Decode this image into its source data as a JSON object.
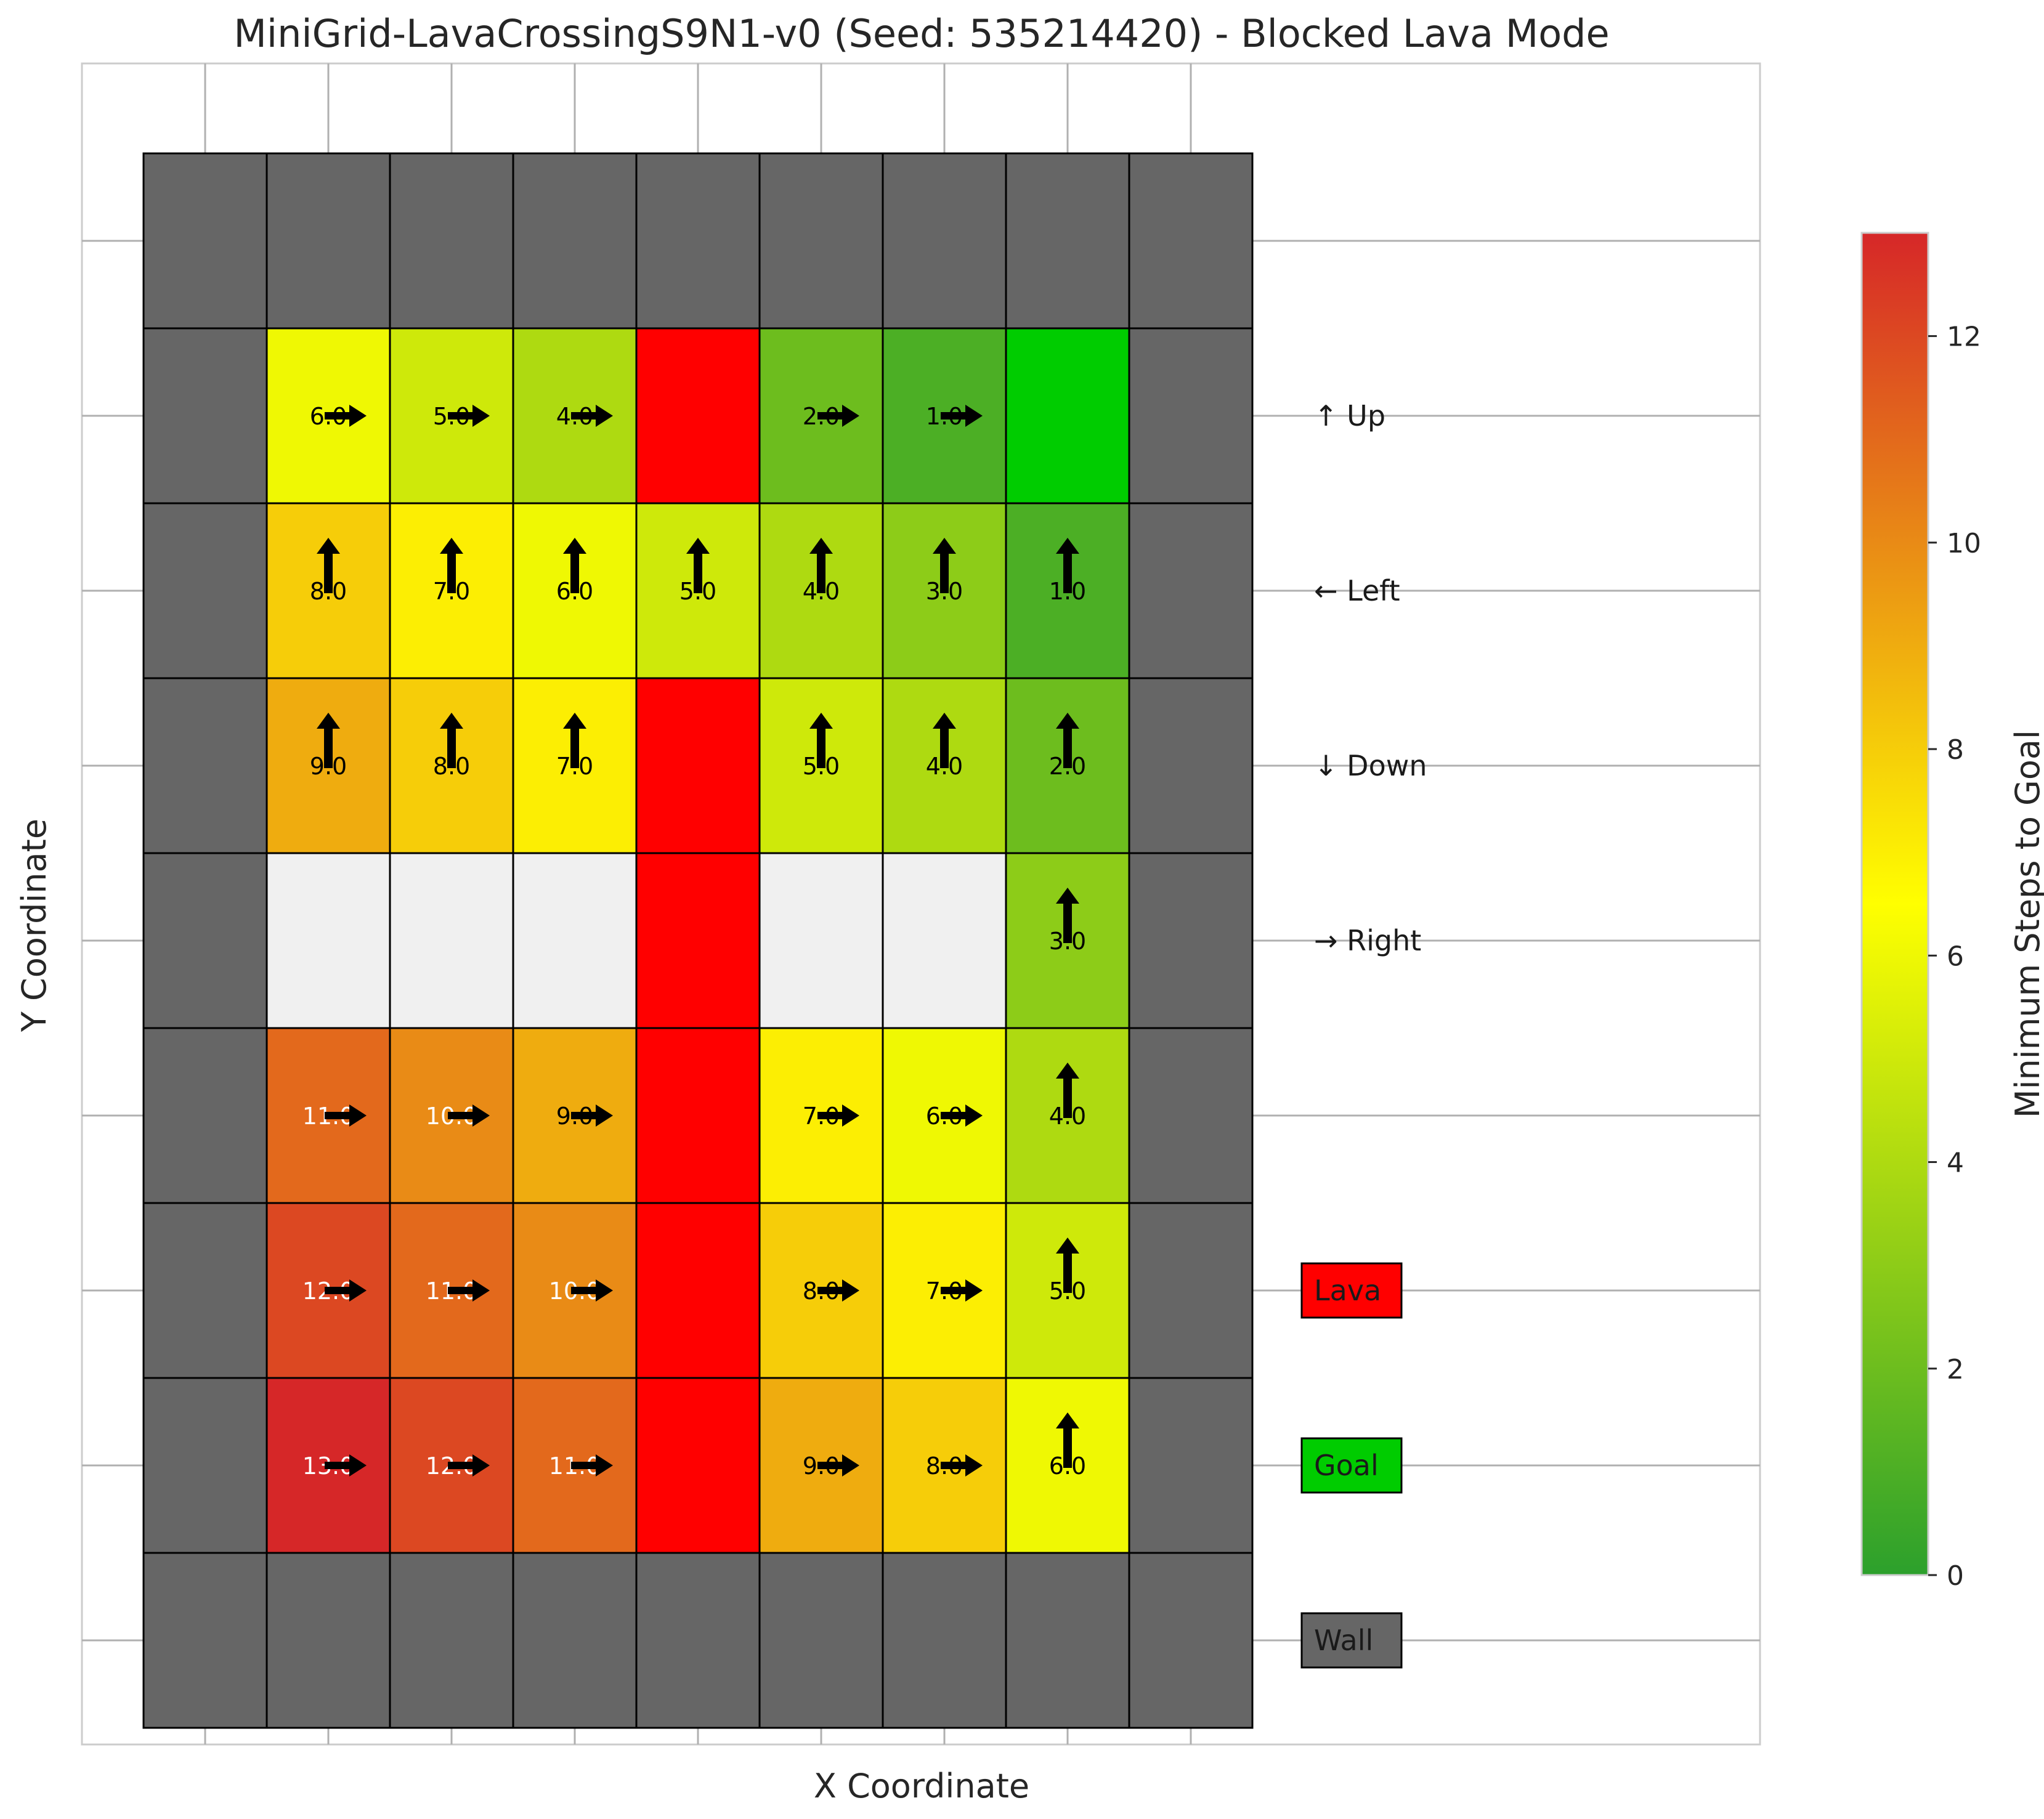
{
  "chart_data": {
    "type": "heatmap",
    "title": "MiniGrid-LavaCrossingS9N1-v0 (Seed: 535214420) - Blocked Lava Mode",
    "xlabel": "X Coordinate",
    "ylabel": "Y Coordinate",
    "grid": true,
    "grid_size": [
      9,
      9
    ],
    "rows": [
      [
        "wall",
        "wall",
        "wall",
        "wall",
        "wall",
        "wall",
        "wall",
        "wall",
        "wall"
      ],
      [
        "wall",
        {
          "v": 6,
          "d": "right"
        },
        {
          "v": 5,
          "d": "right"
        },
        {
          "v": 4,
          "d": "right"
        },
        "lava",
        {
          "v": 2,
          "d": "right"
        },
        {
          "v": 1,
          "d": "right"
        },
        "goal",
        "wall"
      ],
      [
        "wall",
        {
          "v": 8,
          "d": "up"
        },
        {
          "v": 7,
          "d": "up"
        },
        {
          "v": 6,
          "d": "up"
        },
        {
          "v": 5,
          "d": "up"
        },
        {
          "v": 4,
          "d": "up"
        },
        {
          "v": 3,
          "d": "up"
        },
        {
          "v": 1,
          "d": "up"
        },
        "wall"
      ],
      [
        "wall",
        {
          "v": 9,
          "d": "up"
        },
        {
          "v": 8,
          "d": "up"
        },
        {
          "v": 7,
          "d": "up"
        },
        "lava",
        {
          "v": 5,
          "d": "up"
        },
        {
          "v": 4,
          "d": "up"
        },
        {
          "v": 2,
          "d": "up"
        },
        "wall"
      ],
      [
        "wall",
        "empty",
        "empty",
        "empty",
        "lava",
        "empty",
        "empty",
        {
          "v": 3,
          "d": "up"
        },
        "wall"
      ],
      [
        "wall",
        {
          "v": 11,
          "d": "right"
        },
        {
          "v": 10,
          "d": "right"
        },
        {
          "v": 9,
          "d": "right"
        },
        "lava",
        {
          "v": 7,
          "d": "right"
        },
        {
          "v": 6,
          "d": "right"
        },
        {
          "v": 4,
          "d": "up"
        },
        "wall"
      ],
      [
        "wall",
        {
          "v": 12,
          "d": "right"
        },
        {
          "v": 11,
          "d": "right"
        },
        {
          "v": 10,
          "d": "right"
        },
        "lava",
        {
          "v": 8,
          "d": "right"
        },
        {
          "v": 7,
          "d": "right"
        },
        {
          "v": 5,
          "d": "up"
        },
        "wall"
      ],
      [
        "wall",
        {
          "v": 13,
          "d": "right"
        },
        {
          "v": 12,
          "d": "right"
        },
        {
          "v": 11,
          "d": "right"
        },
        "lava",
        {
          "v": 9,
          "d": "right"
        },
        {
          "v": 8,
          "d": "right"
        },
        {
          "v": 6,
          "d": "up"
        },
        "wall"
      ],
      [
        "wall",
        "wall",
        "wall",
        "wall",
        "wall",
        "wall",
        "wall",
        "wall",
        "wall"
      ]
    ],
    "colorbar": {
      "label": "Minimum Steps to Goal",
      "min": 0,
      "max": 13,
      "ticks": [
        0,
        2,
        4,
        6,
        8,
        10,
        12
      ],
      "colors": [
        "#2ca02c",
        "#ffff00",
        "#d62728"
      ]
    },
    "legend": [
      {
        "label": "↑ Up"
      },
      {
        "label": "← Left"
      },
      {
        "label": "↓ Down"
      },
      {
        "label": "→ Right"
      },
      {
        "label": "Lava",
        "color": "#ff0000"
      },
      {
        "label": "Goal",
        "color": "#00cc00"
      },
      {
        "label": "Wall",
        "color": "#666666"
      }
    ],
    "colors": {
      "wall": "#666666",
      "lava": "#ff0000",
      "goal": "#00cc00",
      "empty": "#f0f0f0",
      "frame": "#cccccc",
      "gridline": "#b0b0b0"
    }
  }
}
